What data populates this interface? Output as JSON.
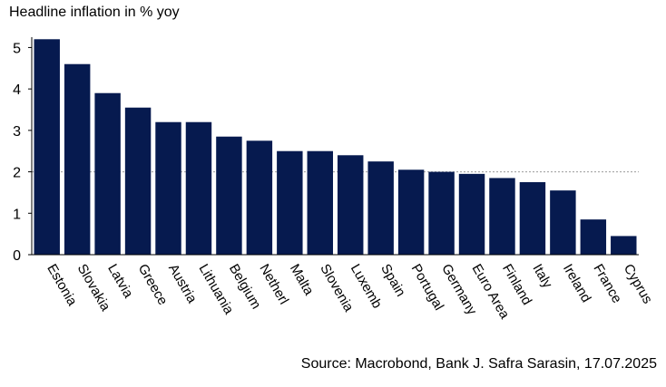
{
  "chart_data": {
    "type": "bar",
    "title": "Headline inflation in % yoy",
    "categories": [
      "Estonia",
      "Slovakia",
      "Latvia",
      "Greece",
      "Austria",
      "Lithuania",
      "Belgium",
      "Netherl",
      "Malta",
      "Slovenia",
      "Luxemb",
      "Spain",
      "Portugal",
      "Germany",
      "Euro Area",
      "Finland",
      "Italy",
      "Ireland",
      "France",
      "Cyprus"
    ],
    "values": [
      5.2,
      4.6,
      3.9,
      3.55,
      3.2,
      3.2,
      2.85,
      2.75,
      2.5,
      2.5,
      2.4,
      2.25,
      2.05,
      2.0,
      1.95,
      1.85,
      1.75,
      1.55,
      0.85,
      0.45
    ],
    "yticks": [
      0,
      1,
      2,
      3,
      4,
      5
    ],
    "ylim": [
      0,
      5.25
    ],
    "reference_line": 2,
    "xlabel": "",
    "ylabel": "",
    "grid": false,
    "legend": "none",
    "bar_color": "#061a4f",
    "reference_line_color": "#999999"
  },
  "source": "Source: Macrobond, Bank J. Safra Sarasin, 17.07.2025"
}
